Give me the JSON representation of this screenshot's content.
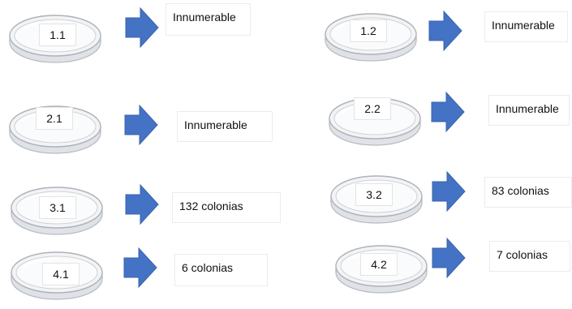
{
  "colors": {
    "arrow": "#4472c4",
    "dish_rim": "#b8bcc2",
    "dish_fill": "#eef0f3"
  },
  "samples": [
    {
      "label": "1.1",
      "result": "Innumerable"
    },
    {
      "label": "1.2",
      "result": "Innumerable"
    },
    {
      "label": "2.1",
      "result": "Innumerable"
    },
    {
      "label": "2.2",
      "result": "Innumerable"
    },
    {
      "label": "3.1",
      "result": "132 colonias"
    },
    {
      "label": "3.2",
      "result": "83 colonias"
    },
    {
      "label": "4.1",
      "result": "6 colonias"
    },
    {
      "label": "4.2",
      "result": "7 colonias"
    }
  ]
}
